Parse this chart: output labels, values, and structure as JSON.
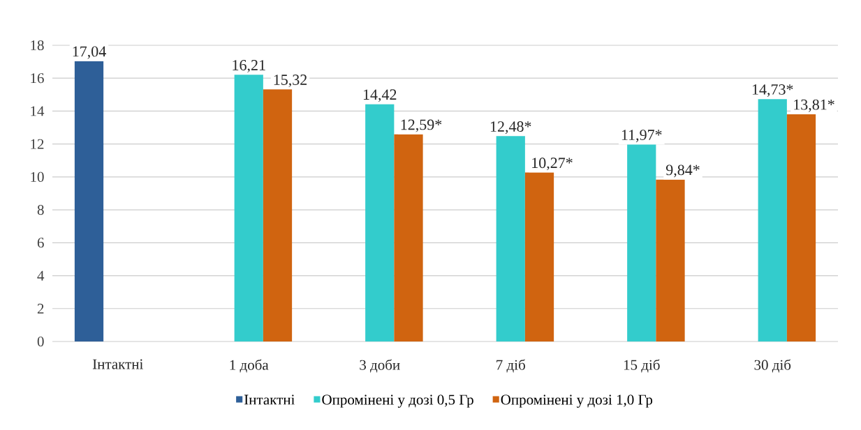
{
  "chart_data": {
    "type": "bar",
    "categories": [
      "Інтактні",
      "1 доба",
      "3 доби",
      "7 діб",
      "15 діб",
      "30 діб"
    ],
    "series": [
      {
        "name": "Інтактні",
        "color": "#2e5f98",
        "values": [
          17.04,
          null,
          null,
          null,
          null,
          null
        ],
        "value_labels": [
          "17,04",
          null,
          null,
          null,
          null,
          null
        ]
      },
      {
        "name": "Опромінені у дозі 0,5 Гр",
        "color": "#33cccc",
        "values": [
          null,
          16.21,
          14.42,
          12.48,
          11.97,
          14.73
        ],
        "value_labels": [
          null,
          "16,21",
          "14,42",
          "12,48*",
          "11,97*",
          "14,73*"
        ]
      },
      {
        "name": "Опромінені у дозі 1,0 Гр",
        "color": "#d06410",
        "values": [
          null,
          15.32,
          12.59,
          10.27,
          9.84,
          13.81
        ],
        "value_labels": [
          null,
          "15,32",
          "12,59*",
          "10,27*",
          "9,84*",
          "13,81*"
        ]
      }
    ],
    "ylim": [
      0,
      18
    ],
    "yticks": [
      0,
      2,
      4,
      6,
      8,
      10,
      12,
      14,
      16,
      18
    ],
    "grid": "y",
    "legend": "bottom"
  }
}
